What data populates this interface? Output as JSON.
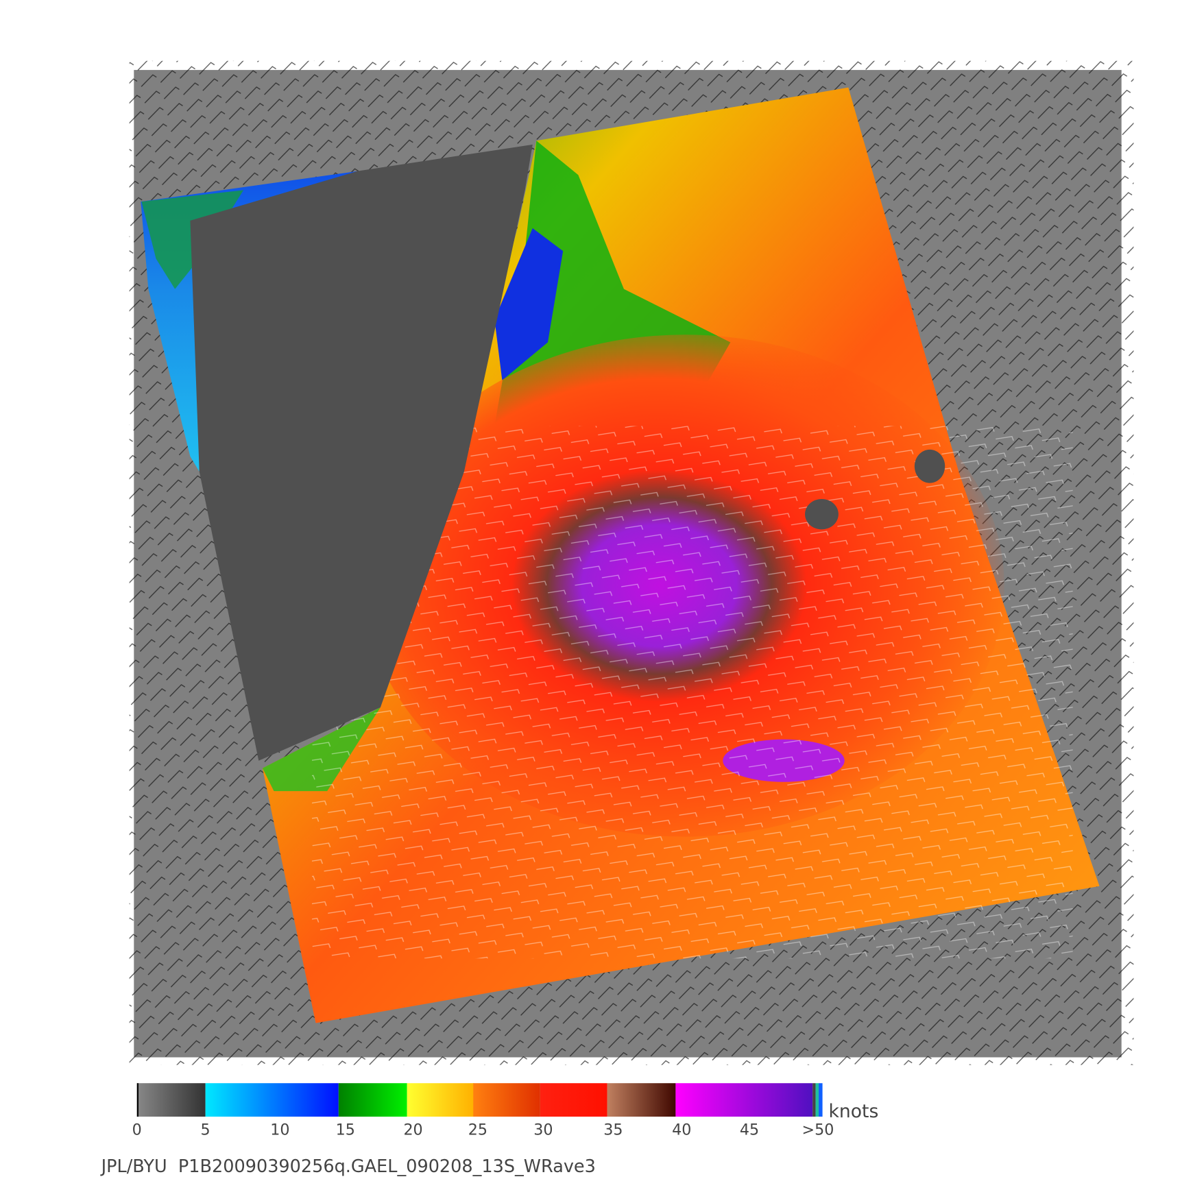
{
  "colorbar": {
    "ticks": [
      "0",
      "5",
      "10",
      "15",
      "20",
      "25",
      "30",
      "35",
      "40",
      "45",
      ">50"
    ],
    "unit": "knots"
  },
  "caption": "JPL/BYU  P1B20090390256q.GAEL_090208_13S_WRave3"
}
